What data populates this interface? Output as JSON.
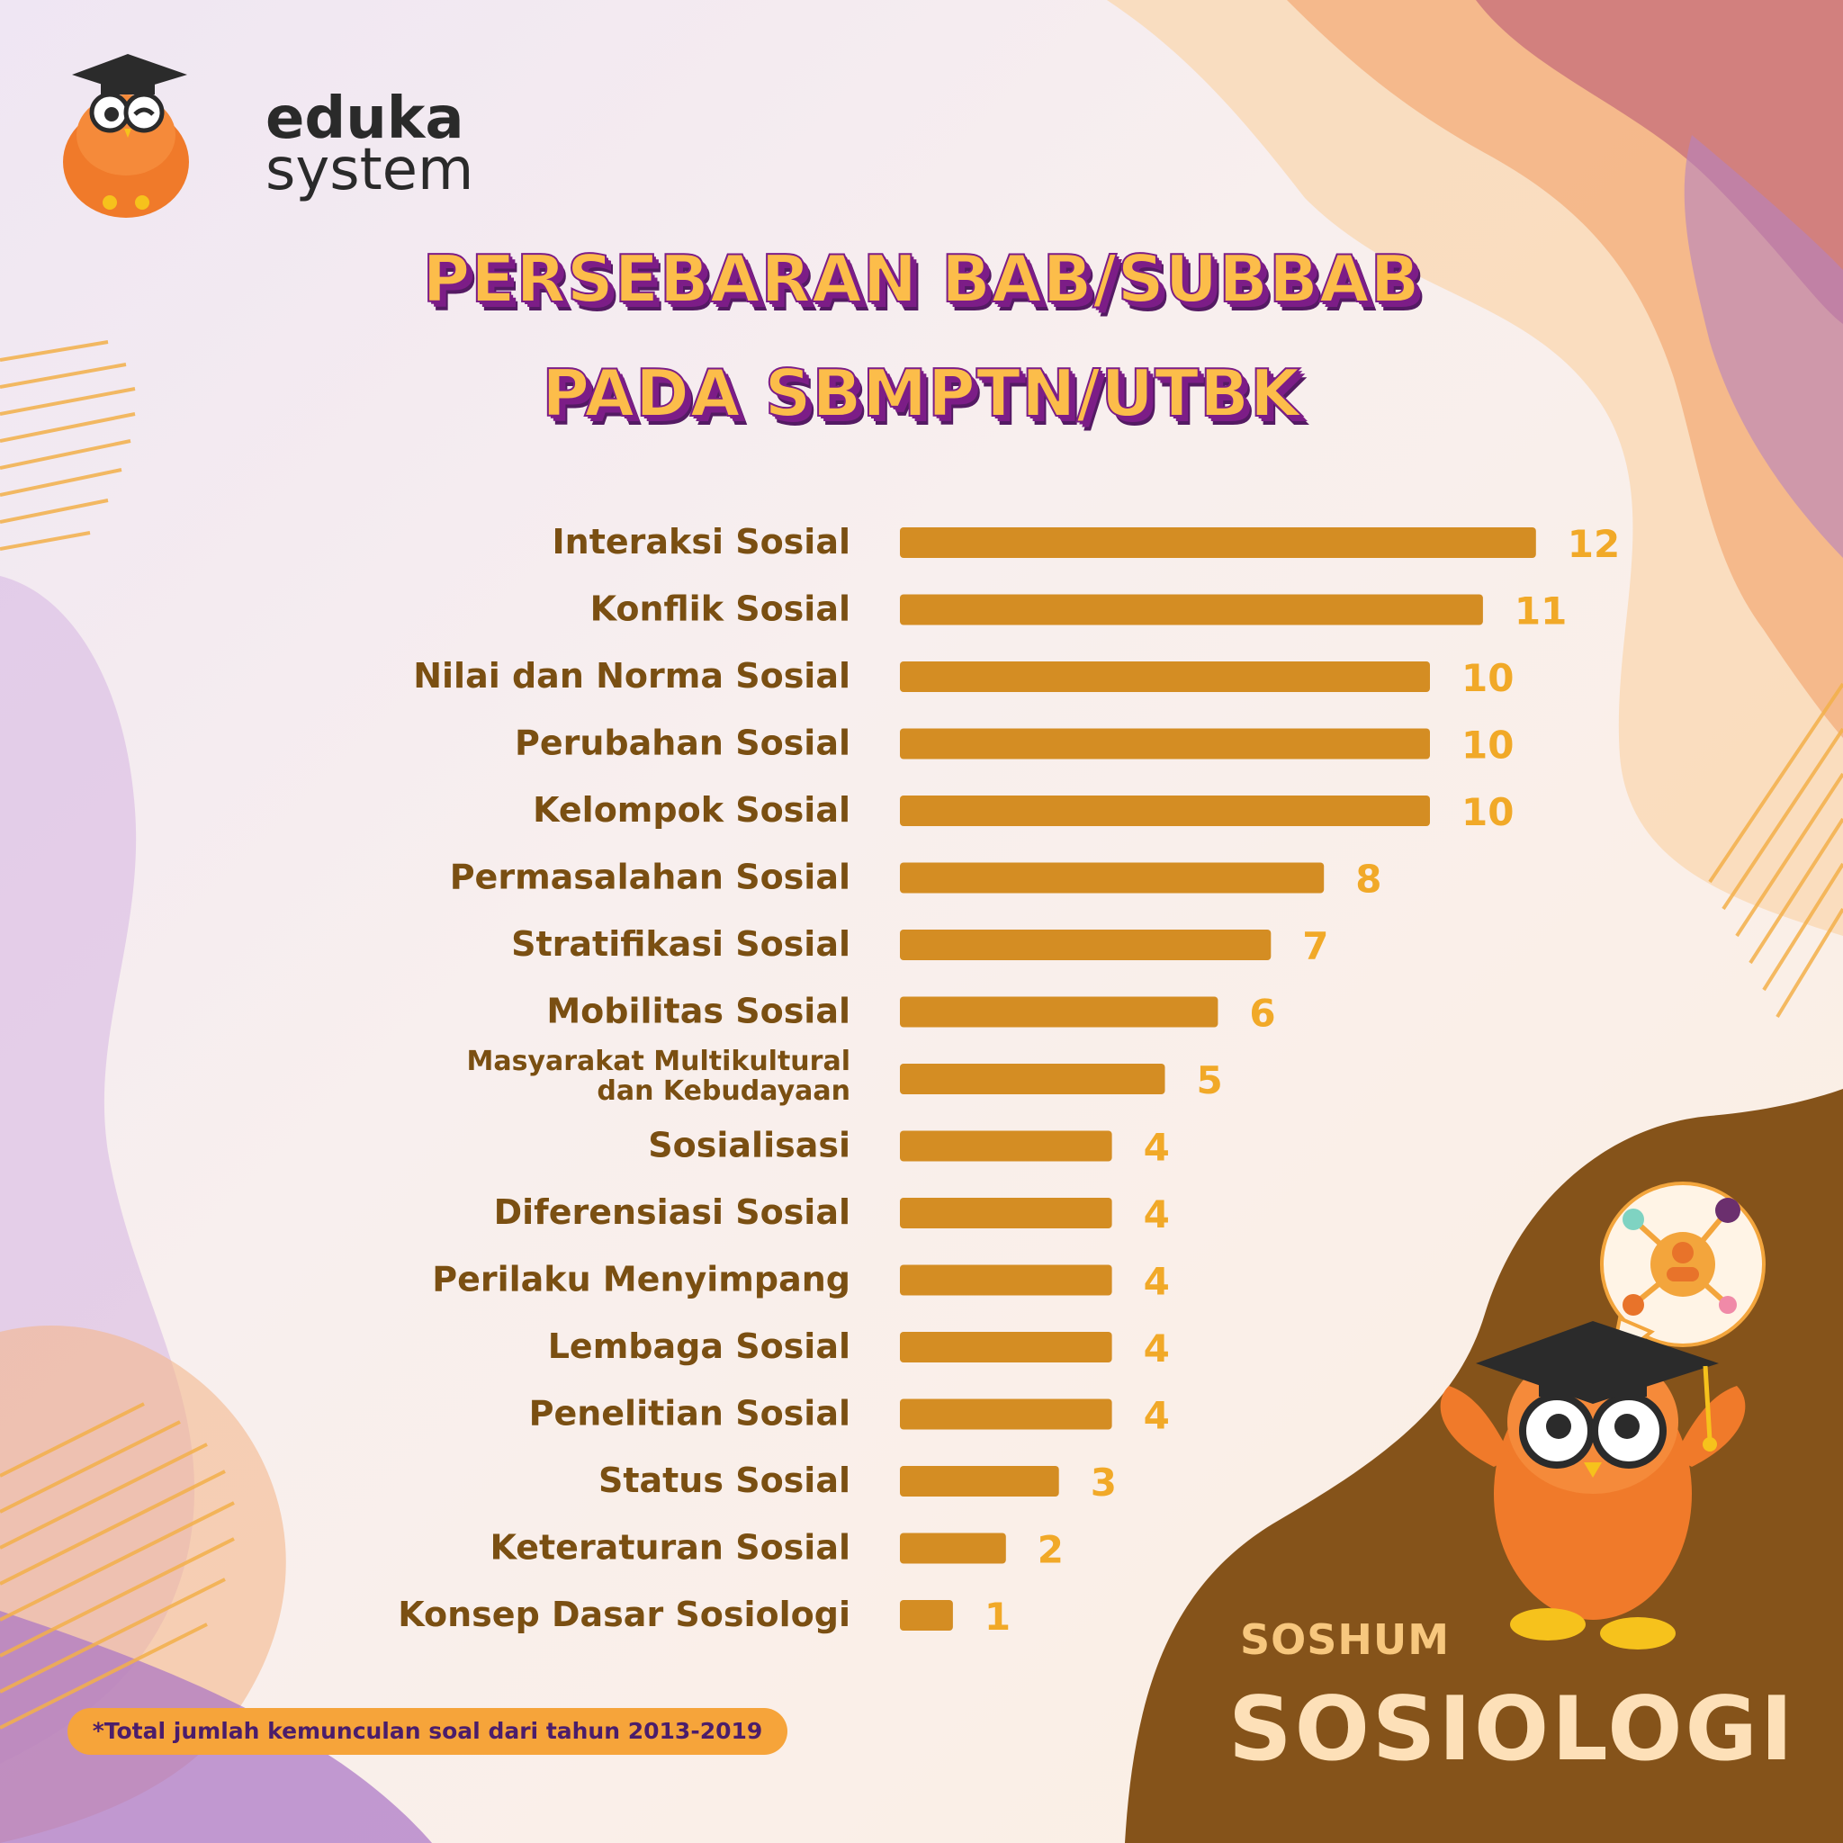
{
  "brand": {
    "line1": "eduka",
    "line2": "system"
  },
  "footer": {
    "category": "SOSHUM",
    "subject": "SOSIOLOGI"
  },
  "colors": {
    "bar": "#d48d23",
    "label": "#7a4f12",
    "value": "#f1a928",
    "title_fill": "#fcbd4a",
    "title_shadow": "#7c1d87",
    "brown_blob": "#85531a"
  },
  "chart_data": {
    "type": "bar",
    "orientation": "horizontal",
    "title_line1": "PERSEBARAN BAB/SUBBAB",
    "title_line2": "PADA SBMPTN/UTBK",
    "note": "*Total jumlah kemunculan soal dari tahun 2013-2019",
    "grid": false,
    "categories": [
      "Interaksi Sosial",
      "Konflik Sosial",
      "Nilai dan Norma Sosial",
      "Perubahan Sosial",
      "Kelompok Sosial",
      "Permasalahan Sosial",
      "Stratifikasi Sosial",
      "Mobilitas Sosial",
      [
        "Masyarakat Multikultural",
        "dan Kebudayaan"
      ],
      "Sosialisasi",
      "Diferensiasi Sosial",
      "Perilaku Menyimpang",
      "Lembaga Sosial",
      "Penelitian Sosial",
      "Status Sosial",
      "Keteraturan Sosial",
      "Konsep Dasar Sosiologi"
    ],
    "values": [
      12,
      11,
      10,
      10,
      10,
      8,
      7,
      6,
      5,
      4,
      4,
      4,
      4,
      4,
      3,
      2,
      1
    ]
  }
}
